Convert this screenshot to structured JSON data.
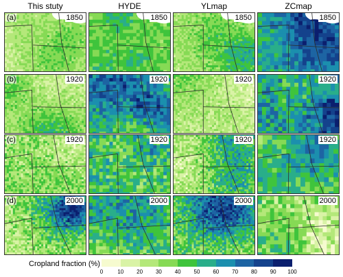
{
  "columns": [
    "This stuty",
    "HYDE",
    "YLmap",
    "ZCmap"
  ],
  "rows": [
    {
      "label": "(a)",
      "year": "1850",
      "lake": true
    },
    {
      "label": "(b)",
      "year": "1920",
      "lake": false
    },
    {
      "label": "(c)",
      "year": "1920",
      "lake": false
    },
    {
      "label": "(d)",
      "year": "2000",
      "lake": false
    }
  ],
  "legend": {
    "title": "Cropland  fraction  (%)",
    "ticks": [
      "0",
      "10",
      "20",
      "30",
      "40",
      "50",
      "60",
      "70",
      "80",
      "90",
      "100"
    ],
    "colors": [
      "#f6fbcf",
      "#d9f3a6",
      "#b4e87a",
      "#86da55",
      "#3fc43c",
      "#29ae8a",
      "#1b8fae",
      "#1d64a3",
      "#14428c",
      "#0b1f6e"
    ]
  }
}
